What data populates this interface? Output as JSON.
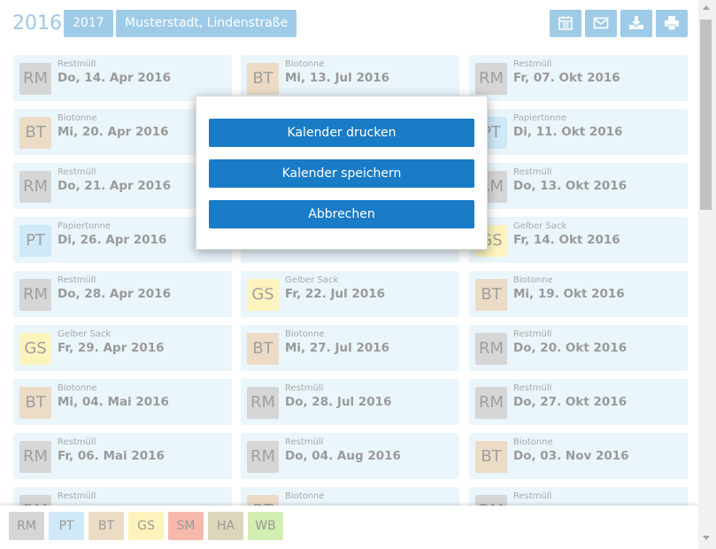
{
  "header": {
    "year": "2016",
    "next_year": "2017",
    "location": "Musterstadt, Lindenstraße"
  },
  "legend": [
    {
      "abbr": "RM",
      "color": "#d6d6d6"
    },
    {
      "abbr": "PT",
      "color": "#cfe9f8"
    },
    {
      "abbr": "BT",
      "color": "#ecdcc6"
    },
    {
      "abbr": "GS",
      "color": "#fdf4bd"
    },
    {
      "abbr": "SM",
      "color": "#f6b9ab"
    },
    {
      "abbr": "HA",
      "color": "#dcd7bb"
    },
    {
      "abbr": "WB",
      "color": "#d2eeb0"
    }
  ],
  "columns": [
    [
      {
        "abbr": "RM",
        "type": "Restmüll",
        "date": "Do, 14. Apr 2016"
      },
      {
        "abbr": "BT",
        "type": "Biotonne",
        "date": "Mi, 20. Apr 2016"
      },
      {
        "abbr": "RM",
        "type": "Restmüll",
        "date": "Do, 21. Apr 2016"
      },
      {
        "abbr": "PT",
        "type": "Papiertonne",
        "date": "Di, 26. Apr 2016"
      },
      {
        "abbr": "RM",
        "type": "Restmüll",
        "date": "Do, 28. Apr 2016"
      },
      {
        "abbr": "GS",
        "type": "Gelber Sack",
        "date": "Fr, 29. Apr 2016"
      },
      {
        "abbr": "BT",
        "type": "Biotonne",
        "date": "Mi, 04. Mai 2016"
      },
      {
        "abbr": "RM",
        "type": "Restmüll",
        "date": "Fr, 06. Mai 2016"
      },
      {
        "abbr": "RM",
        "type": "Restmüll"
      }
    ],
    [
      {
        "abbr": "BT",
        "type": "Biotonne",
        "date": "Mi, 13. Jul 2016"
      },
      null,
      null,
      null,
      {
        "abbr": "GS",
        "type": "Gelber Sack",
        "date": "Fr, 22. Jul 2016"
      },
      {
        "abbr": "BT",
        "type": "Biotonne",
        "date": "Mi, 27. Jul 2016"
      },
      {
        "abbr": "RM",
        "type": "Restmüll",
        "date": "Do, 28. Jul 2016"
      },
      {
        "abbr": "RM",
        "type": "Restmüll",
        "date": "Do, 04. Aug 2016"
      },
      {
        "abbr": "BT",
        "type": "Biotonne"
      }
    ],
    [
      {
        "abbr": "RM",
        "type": "Restmüll",
        "date": "Fr, 07. Okt 2016"
      },
      {
        "abbr": "PT",
        "type": "Papiertonne",
        "date": "Di, 11. Okt 2016"
      },
      {
        "abbr": "RM",
        "type": "Restmüll",
        "date": "Do, 13. Okt 2016"
      },
      {
        "abbr": "GS",
        "type": "Gelber Sack",
        "date": "Fr, 14. Okt 2016"
      },
      {
        "abbr": "BT",
        "type": "Biotonne",
        "date": "Mi, 19. Okt 2016"
      },
      {
        "abbr": "RM",
        "type": "Restmüll",
        "date": "Do, 20. Okt 2016"
      },
      {
        "abbr": "RM",
        "type": "Restmüll",
        "date": "Do, 27. Okt 2016"
      },
      {
        "abbr": "BT",
        "type": "Biotonne",
        "date": "Do, 03. Nov 2016"
      },
      {
        "abbr": "RM",
        "type": "Restmüll"
      }
    ]
  ],
  "modal": {
    "buttons": [
      "Kalender drucken",
      "Kalender speichern",
      "Abbrechen"
    ]
  }
}
